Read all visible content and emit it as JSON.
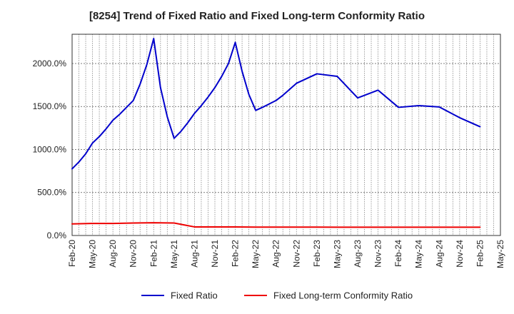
{
  "chart_data": {
    "type": "line",
    "title": "[8254]  Trend of Fixed Ratio and Fixed Long-term Conformity Ratio",
    "xlabel": "",
    "ylabel": "",
    "ylim": [
      0,
      2340
    ],
    "y_ticks": [
      "0.0%",
      "500.0%",
      "1000.0%",
      "1500.0%",
      "2000.0%"
    ],
    "y_tick_values": [
      0,
      500,
      1000,
      1500,
      2000
    ],
    "x_ticks": [
      "Feb-20",
      "May-20",
      "Aug-20",
      "Nov-20",
      "Feb-21",
      "May-21",
      "Aug-21",
      "Nov-21",
      "Feb-22",
      "May-22",
      "Aug-22",
      "Nov-22",
      "Feb-23",
      "May-23",
      "Aug-23",
      "Nov-23",
      "Feb-24",
      "May-24",
      "Aug-24",
      "Nov-24",
      "Feb-25",
      "May-25"
    ],
    "x_tick_months": [
      0,
      3,
      6,
      9,
      12,
      15,
      18,
      21,
      24,
      27,
      30,
      33,
      36,
      39,
      42,
      45,
      48,
      51,
      54,
      57,
      60,
      63
    ],
    "x_range_months": [
      0,
      63
    ],
    "grid": true,
    "legend_position": "bottom",
    "series": [
      {
        "name": "Fixed Ratio",
        "color": "#0000cc",
        "x_months": [
          0,
          1,
          2,
          3,
          4,
          5,
          6,
          7,
          8,
          9,
          10,
          11,
          12,
          13,
          14,
          15,
          16,
          17,
          18,
          19,
          20,
          21,
          22,
          23,
          24,
          25,
          26,
          27,
          28,
          29,
          30,
          31,
          32,
          33,
          36,
          39,
          42,
          45,
          48,
          51,
          54,
          57,
          60
        ],
        "values": [
          775,
          855,
          950,
          1075,
          1150,
          1240,
          1340,
          1410,
          1490,
          1570,
          1760,
          1990,
          2290,
          1720,
          1380,
          1130,
          1210,
          1310,
          1420,
          1510,
          1610,
          1720,
          1850,
          2000,
          2245,
          1910,
          1640,
          1455,
          1490,
          1530,
          1570,
          1630,
          1700,
          1770,
          1880,
          1850,
          1600,
          1690,
          1490,
          1510,
          1495,
          1370,
          1265
        ]
      },
      {
        "name": "Fixed Long-term Conformity Ratio",
        "color": "#ee0000",
        "x_months": [
          0,
          3,
          6,
          9,
          12,
          15,
          18,
          21,
          24,
          27,
          30,
          33,
          36,
          39,
          42,
          45,
          48,
          51,
          54,
          57,
          60
        ],
        "values": [
          135,
          140,
          140,
          145,
          148,
          145,
          100,
          100,
          100,
          98,
          98,
          98,
          97,
          96,
          96,
          96,
          96,
          96,
          96,
          96,
          96
        ]
      }
    ]
  }
}
